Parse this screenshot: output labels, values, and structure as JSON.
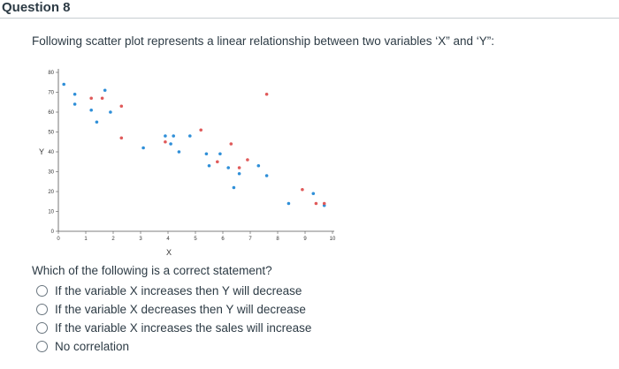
{
  "question": {
    "title": "Question 8",
    "prompt": "Following scatter plot represents a linear relationship between two variables ‘X” and ‘Y”:",
    "question_text": "Which of the following is a correct statement?",
    "options": [
      "If the variable X increases then Y will decrease",
      "If the variable X decreases then Y will decrease",
      "If the variable X increases the sales will increase",
      "No correlation"
    ]
  },
  "colors": {
    "blue": "#2f8fd8",
    "red": "#e05a5a",
    "axis": "#555555"
  },
  "chart_data": {
    "type": "scatter",
    "xlabel": "X",
    "ylabel": "Y",
    "xlim": [
      0,
      10
    ],
    "ylim": [
      0,
      80
    ],
    "xticks": [
      "0",
      "1",
      "2",
      "3",
      "4",
      "5",
      "6",
      "7",
      "8",
      "9",
      "10"
    ],
    "yticks": [
      "0",
      "10",
      "20",
      "30",
      "40",
      "50",
      "60",
      "70",
      "80"
    ],
    "series": [
      {
        "color": "#2f8fd8",
        "points": [
          [
            0.2,
            74
          ],
          [
            0.6,
            69
          ],
          [
            0.6,
            64
          ],
          [
            1.2,
            61
          ],
          [
            1.4,
            55
          ],
          [
            1.7,
            71
          ],
          [
            1.9,
            60
          ],
          [
            3.1,
            42
          ],
          [
            3.9,
            48
          ],
          [
            4.1,
            44
          ],
          [
            4.2,
            48
          ],
          [
            4.4,
            40
          ],
          [
            4.8,
            48
          ],
          [
            5.4,
            39
          ],
          [
            5.5,
            33
          ],
          [
            5.9,
            39
          ],
          [
            6.2,
            32
          ],
          [
            6.4,
            22
          ],
          [
            6.6,
            29
          ],
          [
            7.3,
            33
          ],
          [
            7.6,
            28
          ],
          [
            8.4,
            14
          ],
          [
            9.3,
            19
          ],
          [
            9.7,
            13
          ]
        ]
      },
      {
        "color": "#e05a5a",
        "points": [
          [
            1.2,
            67
          ],
          [
            1.6,
            67
          ],
          [
            2.3,
            63
          ],
          [
            2.3,
            47
          ],
          [
            3.9,
            45
          ],
          [
            5.2,
            51
          ],
          [
            5.8,
            35
          ],
          [
            6.3,
            44
          ],
          [
            6.6,
            32
          ],
          [
            6.9,
            36
          ],
          [
            7.6,
            69
          ],
          [
            8.9,
            21
          ],
          [
            9.4,
            14
          ],
          [
            9.7,
            14
          ]
        ]
      }
    ]
  }
}
